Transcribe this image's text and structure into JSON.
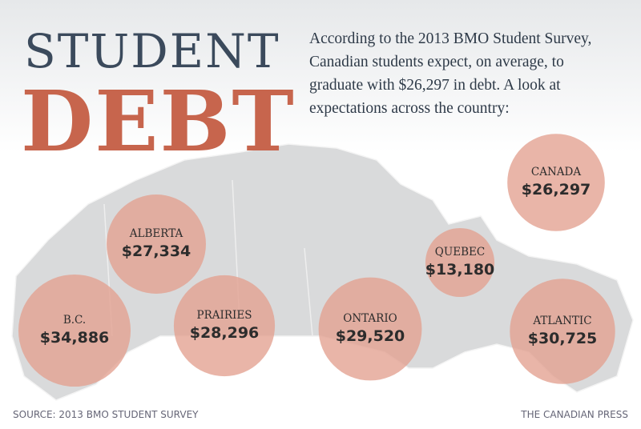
{
  "title_top": "STUDENT",
  "title_bottom": "DEBT",
  "description": "According to the 2013 BMO Student Survey, Canadian students expect, on average, to graduate with $26,297 in debt. A look at expectations across the country:",
  "source": "SOURCE: 2013 BMO STUDENT SURVEY",
  "credit": "THE CANADIAN PRESS",
  "chart_data": {
    "type": "bubble",
    "color": "#e3a090",
    "categories": [
      "CANADA",
      "ALBERTA",
      "B.C.",
      "PRAIRIES",
      "ONTARIO",
      "QUEBEC",
      "ATLANTIC"
    ],
    "values": [
      26297,
      27334,
      34886,
      28296,
      29520,
      13180,
      30725
    ],
    "value_labels": [
      "$26,297",
      "$27,334",
      "$34,886",
      "$28,296",
      "$29,520",
      "$13,180",
      "$30,725"
    ]
  }
}
